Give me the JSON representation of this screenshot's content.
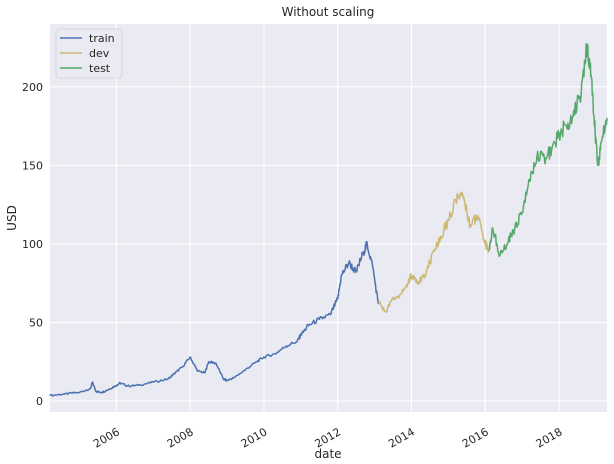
{
  "chart_data": {
    "type": "line",
    "title": "Without scaling",
    "xlabel": "date",
    "ylabel": "USD",
    "xlim": [
      2004.2,
      2019.3
    ],
    "ylim": [
      -7,
      240
    ],
    "x_ticks": [
      2006,
      2008,
      2010,
      2012,
      2014,
      2016,
      2018
    ],
    "x_tick_labels": [
      "2006",
      "2008",
      "2010",
      "2012",
      "2014",
      "2016",
      "2018"
    ],
    "y_ticks": [
      0,
      50,
      100,
      150,
      200
    ],
    "y_tick_labels": [
      "0",
      "50",
      "100",
      "150",
      "200"
    ],
    "grid": true,
    "legend_position": "top-left",
    "legend": [
      "train",
      "dev",
      "test"
    ],
    "series": [
      {
        "name": "train",
        "color": "#4c72b0",
        "x": [
          2004.2,
          2004.6,
          2005.0,
          2005.3,
          2005.35,
          2005.45,
          2005.6,
          2005.8,
          2006.0,
          2006.1,
          2006.3,
          2006.6,
          2007.0,
          2007.4,
          2007.6,
          2007.8,
          2008.0,
          2008.2,
          2008.4,
          2008.5,
          2008.7,
          2008.9,
          2009.0,
          2009.2,
          2009.5,
          2009.8,
          2010.0,
          2010.3,
          2010.6,
          2010.9,
          2011.0,
          2011.2,
          2011.5,
          2011.8,
          2012.0,
          2012.1,
          2012.3,
          2012.5,
          2012.7,
          2012.8,
          2012.95,
          2013.1
        ],
        "values": [
          3.5,
          4.5,
          5.5,
          8.0,
          12.0,
          6.0,
          5.5,
          7.5,
          10.0,
          11.5,
          9.5,
          10.0,
          12.0,
          14.0,
          18.0,
          22.0,
          28.0,
          19.0,
          18.0,
          25.0,
          24.0,
          14.0,
          13.0,
          15.0,
          20.0,
          25.0,
          28.0,
          30.0,
          35.0,
          38.0,
          42.0,
          48.0,
          52.0,
          55.0,
          65.0,
          80.0,
          88.0,
          82.0,
          95.0,
          100.0,
          85.0,
          62.0
        ]
      },
      {
        "name": "dev",
        "color": "#ccb974",
        "x": [
          2013.1,
          2013.3,
          2013.5,
          2013.7,
          2013.9,
          2014.0,
          2014.2,
          2014.4,
          2014.6,
          2014.8,
          2015.0,
          2015.2,
          2015.4,
          2015.5,
          2015.6,
          2015.8,
          2016.0,
          2016.1
        ],
        "values": [
          63.0,
          57.0,
          65.0,
          68.0,
          75.0,
          80.0,
          76.0,
          82.0,
          95.0,
          105.0,
          115.0,
          128.0,
          130.0,
          120.0,
          112.0,
          118.0,
          100.0,
          95.0
        ]
      },
      {
        "name": "test",
        "color": "#55a868",
        "x": [
          2016.1,
          2016.2,
          2016.4,
          2016.6,
          2016.8,
          2017.0,
          2017.2,
          2017.4,
          2017.6,
          2017.8,
          2018.0,
          2018.2,
          2018.4,
          2018.6,
          2018.75,
          2018.85,
          2018.95,
          2019.05,
          2019.15,
          2019.3
        ],
        "values": [
          96.0,
          110.0,
          93.0,
          100.0,
          110.0,
          120.0,
          140.0,
          155.0,
          155.0,
          160.0,
          170.0,
          175.0,
          185.0,
          195.0,
          225.0,
          215.0,
          180.0,
          150.0,
          165.0,
          180.0
        ]
      }
    ]
  }
}
